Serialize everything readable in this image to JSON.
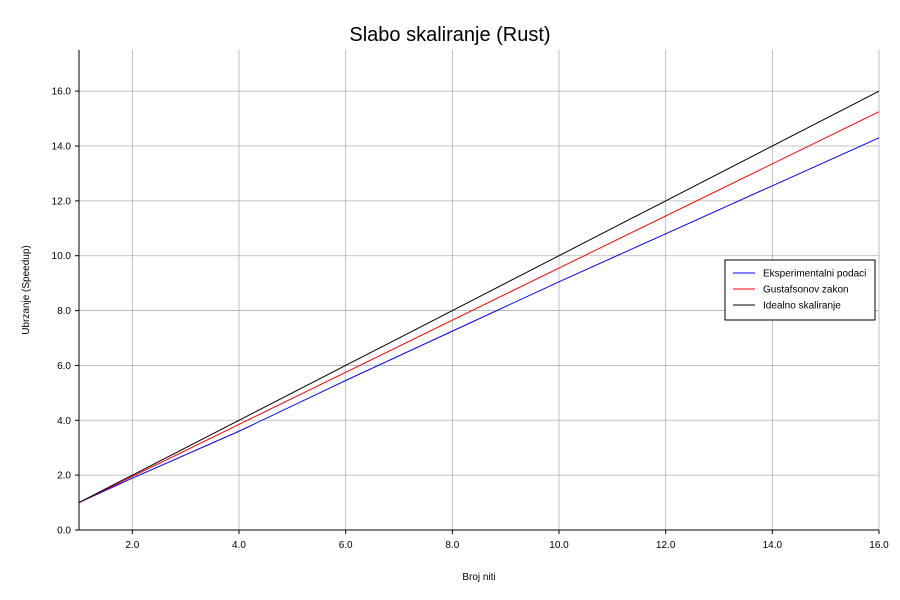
{
  "chart_data": {
    "type": "line",
    "title": "Slabo skaliranje (Rust)",
    "xlabel": "Broj niti",
    "ylabel": "Ubrzanje (Speedup)",
    "xlim": [
      1,
      16
    ],
    "ylim": [
      0,
      17.5
    ],
    "xticks": [
      2,
      4,
      6,
      8,
      10,
      12,
      14,
      16
    ],
    "xtick_labels": [
      "2.0",
      "4.0",
      "6.0",
      "8.0",
      "10.0",
      "12.0",
      "14.0",
      "16.0"
    ],
    "yticks": [
      0,
      2,
      4,
      6,
      8,
      10,
      12,
      14,
      16
    ],
    "ytick_labels": [
      "0.0",
      "2.0",
      "4.0",
      "6.0",
      "8.0",
      "10.0",
      "12.0",
      "14.0",
      "16.0"
    ],
    "grid": true,
    "legend_position": "right",
    "series": [
      {
        "name": "Eksperimentalni podaci",
        "color": "#0000ff",
        "x": [
          1,
          2,
          4,
          6,
          8,
          10,
          12,
          14,
          16
        ],
        "y": [
          1.0,
          1.89,
          3.6,
          5.45,
          7.25,
          9.05,
          10.8,
          12.55,
          14.3
        ]
      },
      {
        "name": "Gustafsonov zakon",
        "color": "#ff0000",
        "x": [
          1,
          16
        ],
        "y": [
          1.0,
          15.25
        ]
      },
      {
        "name": "Idealno skaliranje",
        "color": "#000000",
        "x": [
          1,
          16
        ],
        "y": [
          1.0,
          16.0
        ]
      }
    ]
  }
}
